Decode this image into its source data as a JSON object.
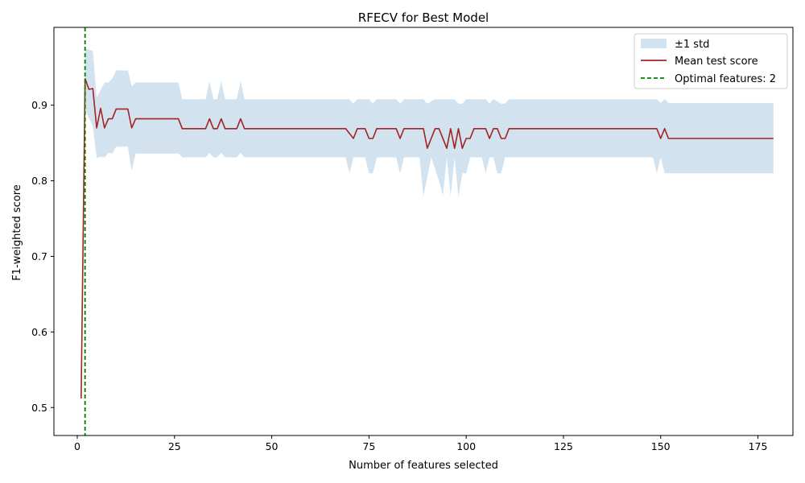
{
  "chart_data": {
    "type": "line",
    "title": "RFECV for Best Model",
    "xlabel": "Number of features selected",
    "ylabel": "F1-weighted score",
    "xlim": [
      -6,
      184
    ],
    "ylim": [
      0.463,
      1.003
    ],
    "xticks": [
      0,
      25,
      50,
      75,
      100,
      125,
      150,
      175
    ],
    "yticks": [
      0.5,
      0.6,
      0.7,
      0.8,
      0.9
    ],
    "ytick_labels": [
      "0.5",
      "0.6",
      "0.7",
      "0.8",
      "0.9"
    ],
    "grid": false,
    "legend_position": "top-right",
    "legend": {
      "band": "±1 std",
      "mean": "Mean test score",
      "optimal": "Optimal features: 2"
    },
    "colors": {
      "mean_line": "#a52323",
      "band": "#d2e2ef",
      "optimal_line": "#008000"
    },
    "optimal_features": 2,
    "series": [
      {
        "name": "Mean test score",
        "points": [
          [
            1,
            0.512
          ],
          [
            2,
            0.935
          ],
          [
            3,
            0.921
          ],
          [
            4,
            0.922
          ],
          [
            5,
            0.87
          ],
          [
            6,
            0.896
          ],
          [
            7,
            0.87
          ],
          [
            8,
            0.882
          ],
          [
            9,
            0.882
          ],
          [
            10,
            0.895
          ],
          [
            11,
            0.895
          ],
          [
            12,
            0.895
          ],
          [
            13,
            0.895
          ],
          [
            14,
            0.87
          ],
          [
            15,
            0.882
          ],
          [
            26,
            0.882
          ],
          [
            27,
            0.869
          ],
          [
            33,
            0.869
          ],
          [
            34,
            0.882
          ],
          [
            35,
            0.869
          ],
          [
            36,
            0.869
          ],
          [
            37,
            0.882
          ],
          [
            38,
            0.869
          ],
          [
            41,
            0.869
          ],
          [
            42,
            0.882
          ],
          [
            43,
            0.869
          ],
          [
            69,
            0.869
          ],
          [
            71,
            0.856
          ],
          [
            72,
            0.869
          ],
          [
            74,
            0.869
          ],
          [
            75,
            0.856
          ],
          [
            76,
            0.856
          ],
          [
            77,
            0.869
          ],
          [
            82,
            0.869
          ],
          [
            83,
            0.856
          ],
          [
            84,
            0.869
          ],
          [
            89,
            0.869
          ],
          [
            90,
            0.843
          ],
          [
            92,
            0.869
          ],
          [
            93,
            0.869
          ],
          [
            95,
            0.843
          ],
          [
            96,
            0.869
          ],
          [
            97,
            0.843
          ],
          [
            98,
            0.869
          ],
          [
            99,
            0.843
          ],
          [
            100,
            0.856
          ],
          [
            101,
            0.856
          ],
          [
            102,
            0.869
          ],
          [
            105,
            0.869
          ],
          [
            106,
            0.856
          ],
          [
            107,
            0.869
          ],
          [
            108,
            0.869
          ],
          [
            109,
            0.856
          ],
          [
            110,
            0.856
          ],
          [
            111,
            0.869
          ],
          [
            149,
            0.869
          ],
          [
            150,
            0.856
          ],
          [
            151,
            0.869
          ],
          [
            152,
            0.856
          ],
          [
            179,
            0.856
          ]
        ]
      },
      {
        "name": "±1 std",
        "upper": [
          [
            2,
            0.975
          ],
          [
            4,
            0.972
          ],
          [
            5,
            0.91
          ],
          [
            6,
            0.92
          ],
          [
            7,
            0.93
          ],
          [
            8,
            0.93
          ],
          [
            9,
            0.935
          ],
          [
            10,
            0.946
          ],
          [
            13,
            0.946
          ],
          [
            14,
            0.925
          ],
          [
            15,
            0.93
          ],
          [
            26,
            0.93
          ],
          [
            27,
            0.908
          ],
          [
            33,
            0.908
          ],
          [
            34,
            0.932
          ],
          [
            35,
            0.908
          ],
          [
            36,
            0.908
          ],
          [
            37,
            0.932
          ],
          [
            38,
            0.908
          ],
          [
            41,
            0.908
          ],
          [
            42,
            0.932
          ],
          [
            43,
            0.908
          ],
          [
            70,
            0.908
          ],
          [
            71,
            0.902
          ],
          [
            72,
            0.908
          ],
          [
            75,
            0.908
          ],
          [
            76,
            0.902
          ],
          [
            77,
            0.908
          ],
          [
            82,
            0.908
          ],
          [
            83,
            0.902
          ],
          [
            84,
            0.908
          ],
          [
            89,
            0.908
          ],
          [
            90,
            0.902
          ],
          [
            92,
            0.908
          ],
          [
            97,
            0.908
          ],
          [
            98,
            0.902
          ],
          [
            99,
            0.902
          ],
          [
            100,
            0.908
          ],
          [
            105,
            0.908
          ],
          [
            106,
            0.902
          ],
          [
            107,
            0.908
          ],
          [
            109,
            0.902
          ],
          [
            110,
            0.902
          ],
          [
            111,
            0.908
          ],
          [
            149,
            0.908
          ],
          [
            150,
            0.903
          ],
          [
            151,
            0.908
          ],
          [
            152,
            0.903
          ],
          [
            179,
            0.903
          ]
        ],
        "lower": [
          [
            2,
            0.895
          ],
          [
            4,
            0.872
          ],
          [
            5,
            0.83
          ],
          [
            6,
            0.832
          ],
          [
            7,
            0.831
          ],
          [
            8,
            0.837
          ],
          [
            9,
            0.836
          ],
          [
            10,
            0.845
          ],
          [
            13,
            0.845
          ],
          [
            14,
            0.813
          ],
          [
            15,
            0.836
          ],
          [
            26,
            0.836
          ],
          [
            27,
            0.831
          ],
          [
            33,
            0.831
          ],
          [
            34,
            0.837
          ],
          [
            35,
            0.831
          ],
          [
            36,
            0.831
          ],
          [
            37,
            0.837
          ],
          [
            38,
            0.831
          ],
          [
            41,
            0.831
          ],
          [
            42,
            0.837
          ],
          [
            43,
            0.831
          ],
          [
            69,
            0.831
          ],
          [
            70,
            0.81
          ],
          [
            71,
            0.831
          ],
          [
            74,
            0.831
          ],
          [
            75,
            0.81
          ],
          [
            76,
            0.81
          ],
          [
            77,
            0.831
          ],
          [
            82,
            0.831
          ],
          [
            83,
            0.81
          ],
          [
            84,
            0.831
          ],
          [
            88,
            0.831
          ],
          [
            89,
            0.779
          ],
          [
            90,
            0.805
          ],
          [
            91,
            0.831
          ],
          [
            93,
            0.8
          ],
          [
            94,
            0.78
          ],
          [
            95,
            0.831
          ],
          [
            96,
            0.78
          ],
          [
            97,
            0.831
          ],
          [
            98,
            0.778
          ],
          [
            99,
            0.81
          ],
          [
            100,
            0.81
          ],
          [
            101,
            0.831
          ],
          [
            104,
            0.831
          ],
          [
            105,
            0.81
          ],
          [
            106,
            0.831
          ],
          [
            107,
            0.831
          ],
          [
            108,
            0.81
          ],
          [
            109,
            0.81
          ],
          [
            110,
            0.831
          ],
          [
            148,
            0.831
          ],
          [
            149,
            0.81
          ],
          [
            150,
            0.831
          ],
          [
            151,
            0.81
          ],
          [
            179,
            0.81
          ]
        ]
      }
    ]
  }
}
